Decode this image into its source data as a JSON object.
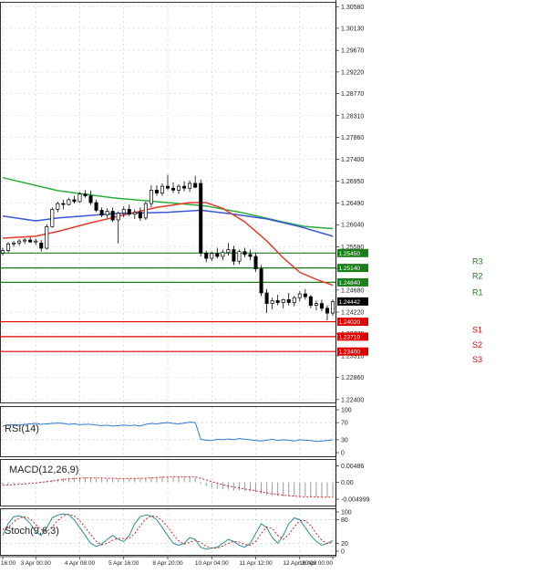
{
  "chart_data": {
    "type": "candlestick",
    "instrument_hint": "GBP/USD style price chart",
    "main": {
      "y_ticks": [
        "1.30580",
        "1.30130",
        "1.29670",
        "1.29220",
        "1.28770",
        "1.28310",
        "1.27860",
        "1.27400",
        "1.26950",
        "1.26490",
        "1.26040",
        "1.25580",
        "1.25130",
        "1.24680",
        "1.24220",
        "1.23770",
        "1.23310",
        "1.22860",
        "1.22400"
      ],
      "y_tick_values": [
        1.3058,
        1.3013,
        1.2967,
        1.2922,
        1.2877,
        1.2831,
        1.2786,
        1.274,
        1.2695,
        1.2649,
        1.2604,
        1.2558,
        1.2513,
        1.2468,
        1.2422,
        1.2377,
        1.2331,
        1.2286,
        1.224
      ],
      "ylim": [
        1.2234,
        1.3068
      ],
      "current_price": "1.24442",
      "levels": [
        {
          "name": "R3",
          "value": 1.2545,
          "label": "1.25450",
          "color": "#1a7f1a"
        },
        {
          "name": "R2",
          "value": 1.2514,
          "label": "1.25140",
          "color": "#1a7f1a"
        },
        {
          "name": "R1",
          "value": 1.2484,
          "label": "1.24840",
          "color": "#1a7f1a"
        },
        {
          "name": "S1",
          "value": 1.2402,
          "label": "1.24020",
          "color": "#e00000"
        },
        {
          "name": "S2",
          "value": 1.2371,
          "label": "1.23710",
          "color": "#e00000"
        },
        {
          "name": "S3",
          "value": 1.234,
          "label": "1.23400",
          "color": "#e00000"
        }
      ],
      "candles": [
        [
          1.2545,
          1.2556,
          1.254,
          1.255
        ],
        [
          1.255,
          1.2568,
          1.2546,
          1.2564
        ],
        [
          1.2564,
          1.257,
          1.2558,
          1.2566
        ],
        [
          1.2566,
          1.2574,
          1.256,
          1.257
        ],
        [
          1.257,
          1.2576,
          1.2564,
          1.2572
        ],
        [
          1.2572,
          1.2578,
          1.2566,
          1.2568
        ],
        [
          1.2568,
          1.2575,
          1.2562,
          1.257
        ],
        [
          1.2566,
          1.2572,
          1.2548,
          1.2555
        ],
        [
          1.2555,
          1.2605,
          1.2552,
          1.26
        ],
        [
          1.26,
          1.264,
          1.2598,
          1.2636
        ],
        [
          1.2636,
          1.2652,
          1.263,
          1.2648
        ],
        [
          1.2648,
          1.2656,
          1.2636,
          1.2646
        ],
        [
          1.2646,
          1.266,
          1.2644,
          1.2656
        ],
        [
          1.2656,
          1.2664,
          1.2648,
          1.2652
        ],
        [
          1.2652,
          1.2672,
          1.265,
          1.2668
        ],
        [
          1.2668,
          1.2676,
          1.266,
          1.2664
        ],
        [
          1.2664,
          1.2675,
          1.2645,
          1.265
        ],
        [
          1.265,
          1.2656,
          1.263,
          1.2634
        ],
        [
          1.2634,
          1.264,
          1.262,
          1.2624
        ],
        [
          1.2624,
          1.2638,
          1.2618,
          1.2632
        ],
        [
          1.2632,
          1.264,
          1.261,
          1.2614
        ],
        [
          1.2614,
          1.2632,
          1.2565,
          1.2628
        ],
        [
          1.2628,
          1.2642,
          1.262,
          1.2636
        ],
        [
          1.2636,
          1.2646,
          1.2622,
          1.2626
        ],
        [
          1.2626,
          1.2636,
          1.2616,
          1.263
        ],
        [
          1.263,
          1.264,
          1.2612,
          1.2618
        ],
        [
          1.2618,
          1.2652,
          1.2614,
          1.2648
        ],
        [
          1.2648,
          1.2686,
          1.264,
          1.2676
        ],
        [
          1.2676,
          1.2686,
          1.2664,
          1.267
        ],
        [
          1.267,
          1.269,
          1.2664,
          1.2684
        ],
        [
          1.2684,
          1.2708,
          1.2676,
          1.268
        ],
        [
          1.268,
          1.2692,
          1.267,
          1.2676
        ],
        [
          1.2676,
          1.2688,
          1.2668,
          1.2684
        ],
        [
          1.2684,
          1.2694,
          1.2674,
          1.268
        ],
        [
          1.268,
          1.2696,
          1.2672,
          1.269
        ],
        [
          1.269,
          1.2706,
          1.268,
          1.2682
        ],
        [
          1.269,
          1.2698,
          1.2538,
          1.2545
        ],
        [
          1.2545,
          1.255,
          1.2526,
          1.2534
        ],
        [
          1.2534,
          1.2548,
          1.2528,
          1.2544
        ],
        [
          1.2544,
          1.2556,
          1.2534,
          1.2538
        ],
        [
          1.2538,
          1.2552,
          1.253,
          1.2546
        ],
        [
          1.2546,
          1.2566,
          1.254,
          1.2552
        ],
        [
          1.2552,
          1.256,
          1.252,
          1.2528
        ],
        [
          1.2528,
          1.2552,
          1.2522,
          1.2548
        ],
        [
          1.2548,
          1.2556,
          1.2536,
          1.2542
        ],
        [
          1.2542,
          1.2552,
          1.253,
          1.2538
        ],
        [
          1.2538,
          1.2546,
          1.2506,
          1.2512
        ],
        [
          1.2512,
          1.252,
          1.2455,
          1.2462
        ],
        [
          1.2462,
          1.247,
          1.242,
          1.244
        ],
        [
          1.244,
          1.2452,
          1.2428,
          1.2446
        ],
        [
          1.2446,
          1.2458,
          1.2436,
          1.2442
        ],
        [
          1.2442,
          1.245,
          1.243,
          1.2448
        ],
        [
          1.2448,
          1.2462,
          1.2436,
          1.2442
        ],
        [
          1.2442,
          1.2456,
          1.2434,
          1.2452
        ],
        [
          1.2452,
          1.2466,
          1.2444,
          1.246
        ],
        [
          1.246,
          1.247,
          1.2448,
          1.2454
        ],
        [
          1.2454,
          1.2458,
          1.243,
          1.2436
        ],
        [
          1.2436,
          1.2446,
          1.2426,
          1.244
        ],
        [
          1.244,
          1.2448,
          1.2424,
          1.243
        ],
        [
          1.243,
          1.2436,
          1.2405,
          1.242
        ],
        [
          1.242,
          1.2448,
          1.2414,
          1.2444
        ]
      ],
      "moving_averages": [
        {
          "color": "#2cac3e",
          "points": [
            [
              0,
              1.2702
            ],
            [
              10,
              1.2675
            ],
            [
              20,
              1.266
            ],
            [
              30,
              1.265
            ],
            [
              37,
              1.2643
            ],
            [
              44,
              1.2628
            ],
            [
              50,
              1.2612
            ],
            [
              55,
              1.26
            ],
            [
              60,
              1.2596
            ]
          ]
        },
        {
          "color": "#3a56d6",
          "points": [
            [
              0,
              1.2622
            ],
            [
              6,
              1.2612
            ],
            [
              10,
              1.2618
            ],
            [
              20,
              1.2627
            ],
            [
              30,
              1.263
            ],
            [
              36,
              1.2634
            ],
            [
              42,
              1.2626
            ],
            [
              48,
              1.2616
            ],
            [
              54,
              1.26
            ],
            [
              60,
              1.258
            ]
          ]
        },
        {
          "color": "#e83a2a",
          "points": [
            [
              0,
              1.2576
            ],
            [
              6,
              1.258
            ],
            [
              10,
              1.259
            ],
            [
              16,
              1.2608
            ],
            [
              22,
              1.2624
            ],
            [
              28,
              1.264
            ],
            [
              34,
              1.265
            ],
            [
              37,
              1.265
            ],
            [
              40,
              1.2638
            ],
            [
              44,
              1.261
            ],
            [
              48,
              1.257
            ],
            [
              51,
              1.2535
            ],
            [
              54,
              1.2505
            ],
            [
              57,
              1.249
            ],
            [
              60,
              1.2478
            ]
          ]
        }
      ]
    },
    "x_labels": [
      "16:00",
      "3 Apr 00:00",
      "4 Apr 08:00",
      "5 Apr 16:00",
      "8 Apr 20:00",
      "10 Apr 04:00",
      "11 Apr 12:00",
      "12 Apr 20:00",
      "16 Apr 00:00"
    ],
    "x_label_positions": [
      0,
      6,
      14,
      22,
      30,
      38,
      46,
      54,
      60
    ],
    "rsi": {
      "label": "RSI(14)",
      "y_ticks": [
        "100",
        "70",
        "30",
        "0"
      ],
      "y_tick_values": [
        100,
        70,
        30,
        0
      ],
      "ylim": [
        0,
        100
      ],
      "color": "#2b7bd0",
      "values": [
        62,
        64,
        65,
        64,
        66,
        67,
        68,
        66,
        67,
        68,
        69,
        68,
        66,
        67,
        65,
        66,
        66,
        64,
        63,
        64,
        62,
        63,
        64,
        63,
        64,
        62,
        66,
        68,
        67,
        69,
        70,
        68,
        67,
        69,
        71,
        70,
        31,
        29,
        28,
        31,
        30,
        32,
        30,
        33,
        31,
        30,
        28,
        27,
        29,
        31,
        28,
        30,
        29,
        27,
        30,
        29,
        28,
        26,
        27,
        28,
        30
      ],
      "reference_lines": [
        70,
        30
      ]
    },
    "macd": {
      "label": "MACD(12,26,9)",
      "y_ticks": [
        "0.00486",
        "0.00",
        "-0.004999"
      ],
      "y_tick_values": [
        0.00486,
        0.0,
        -0.004999
      ],
      "ylim": [
        -0.0058,
        0.0058
      ],
      "histogram_color": "#9a9a9a",
      "signal_color": "#e02020",
      "histogram": [
        -0.0008,
        -0.0007,
        -0.0005,
        -0.0004,
        -0.0002,
        -0.0001,
        0.0,
        0.0002,
        0.0004,
        0.0007,
        0.001,
        0.0012,
        0.0013,
        0.0014,
        0.0015,
        0.0015,
        0.0014,
        0.0013,
        0.0012,
        0.0011,
        0.001,
        0.001,
        0.0011,
        0.0011,
        0.0012,
        0.0012,
        0.0013,
        0.0015,
        0.0016,
        0.0017,
        0.0017,
        0.0016,
        0.0016,
        0.0017,
        0.0016,
        0.0015,
        -0.0006,
        -0.0012,
        -0.0016,
        -0.0019,
        -0.0021,
        -0.0022,
        -0.0024,
        -0.0025,
        -0.0026,
        -0.0027,
        -0.0029,
        -0.0034,
        -0.0038,
        -0.004,
        -0.0041,
        -0.0042,
        -0.0042,
        -0.0042,
        -0.0041,
        -0.0041,
        -0.0042,
        -0.0043,
        -0.0044,
        -0.0045,
        -0.0044
      ],
      "signal": [
        -0.0009,
        -0.0008,
        -0.0007,
        -0.0006,
        -0.0005,
        -0.0003,
        -0.0002,
        0.0,
        0.0002,
        0.0004,
        0.0006,
        0.0008,
        0.001,
        0.0011,
        0.0012,
        0.0013,
        0.0013,
        0.0013,
        0.0013,
        0.0012,
        0.0012,
        0.0011,
        0.0011,
        0.0011,
        0.0011,
        0.0012,
        0.0012,
        0.0013,
        0.0014,
        0.0015,
        0.0015,
        0.0016,
        0.0016,
        0.0016,
        0.0016,
        0.0016,
        0.0012,
        0.0007,
        0.0002,
        -0.0003,
        -0.0007,
        -0.0011,
        -0.0014,
        -0.0017,
        -0.002,
        -0.0022,
        -0.0025,
        -0.0028,
        -0.0031,
        -0.0034,
        -0.0036,
        -0.0038,
        -0.004,
        -0.0041,
        -0.0042,
        -0.0043,
        -0.0043,
        -0.0043,
        -0.0044,
        -0.0044,
        -0.0044
      ]
    },
    "stoch": {
      "label": "Stoch(9,6,3)",
      "y_ticks": [
        "100",
        "80",
        "20",
        "0"
      ],
      "y_tick_values": [
        100,
        80,
        20,
        0
      ],
      "ylim": [
        0,
        100
      ],
      "k_color": "#2a8fa0",
      "d_color": "#e02020",
      "reference_lines": [
        80,
        20
      ],
      "k": [
        40,
        70,
        88,
        90,
        85,
        70,
        50,
        40,
        60,
        85,
        92,
        95,
        93,
        80,
        60,
        40,
        20,
        12,
        18,
        30,
        40,
        30,
        25,
        40,
        70,
        88,
        92,
        90,
        80,
        60,
        40,
        20,
        15,
        20,
        35,
        30,
        10,
        5,
        8,
        10,
        20,
        30,
        25,
        15,
        10,
        20,
        45,
        70,
        60,
        35,
        20,
        40,
        70,
        85,
        80,
        60,
        40,
        25,
        15,
        20,
        28
      ],
      "d": [
        55,
        60,
        75,
        85,
        88,
        82,
        68,
        55,
        50,
        62,
        78,
        90,
        94,
        90,
        78,
        60,
        42,
        25,
        16,
        20,
        28,
        33,
        32,
        33,
        45,
        65,
        82,
        90,
        88,
        78,
        62,
        42,
        26,
        18,
        23,
        28,
        22,
        12,
        8,
        8,
        13,
        20,
        25,
        23,
        17,
        15,
        25,
        45,
        62,
        58,
        40,
        30,
        42,
        62,
        78,
        78,
        65,
        45,
        28,
        20,
        22
      ]
    }
  }
}
